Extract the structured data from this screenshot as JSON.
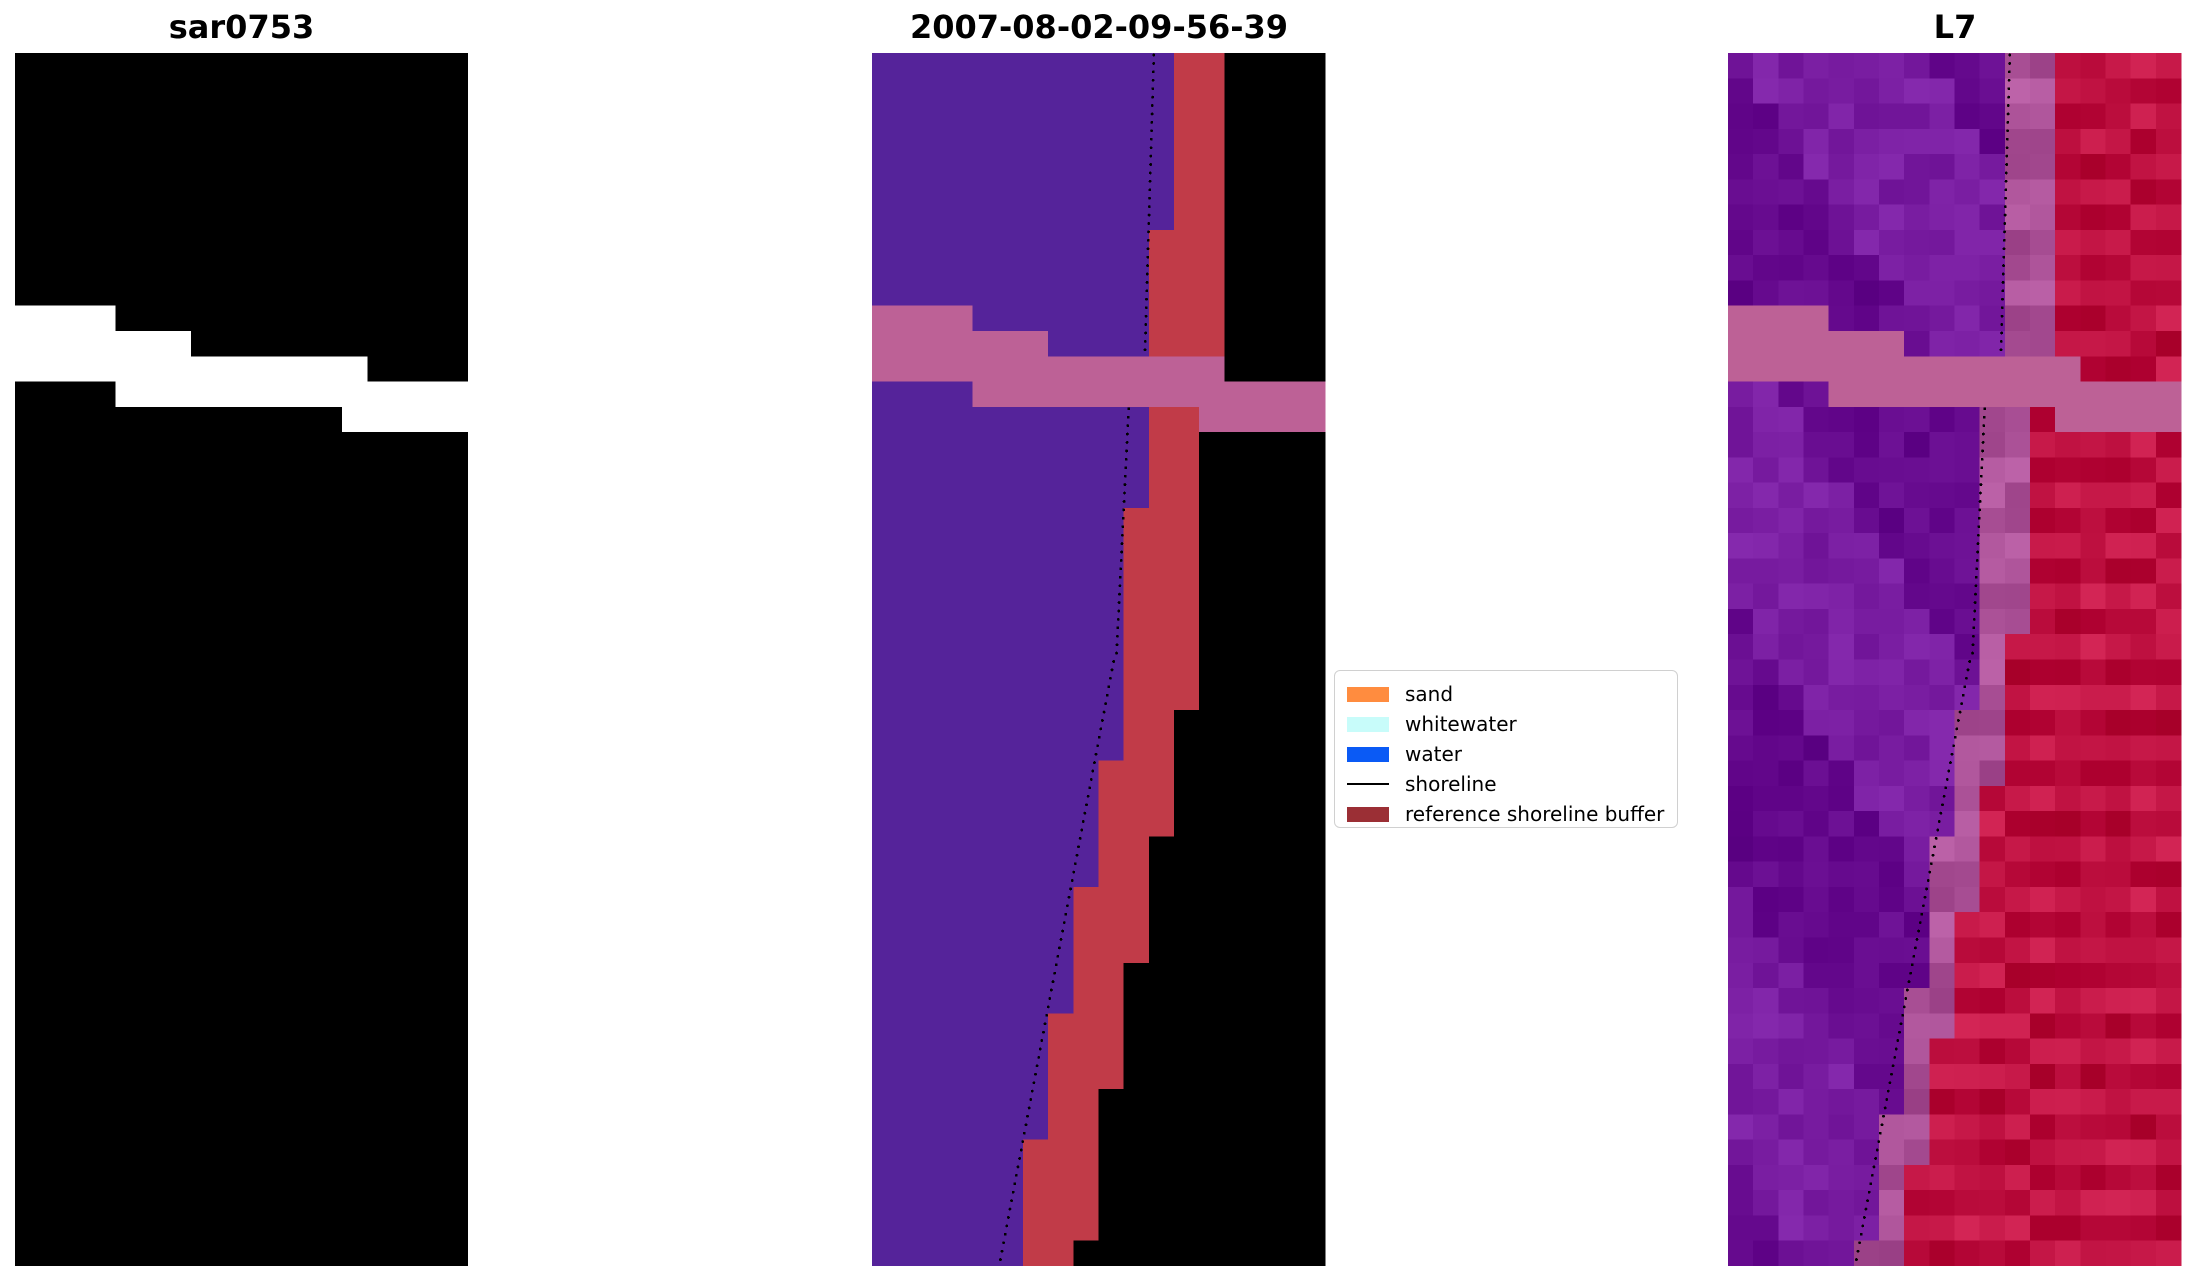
{
  "panels": [
    {
      "title": "sar0753",
      "kind": "rgb"
    },
    {
      "title": "2007-08-02-09-56-39",
      "kind": "classified"
    },
    {
      "title": "L7",
      "kind": "index"
    }
  ],
  "legend": {
    "items": [
      {
        "label": "sand",
        "type": "patch",
        "color": "#ff8c3f"
      },
      {
        "label": "whitewater",
        "type": "patch",
        "color": "#c8fcfa"
      },
      {
        "label": "water",
        "type": "patch",
        "color": "#0a5af5"
      },
      {
        "label": "shoreline",
        "type": "line",
        "color": "#000000"
      },
      {
        "label": "reference shoreline buffer",
        "type": "patch",
        "color": "#9b2f35"
      }
    ]
  },
  "colors": {
    "rgb_water": "#3a80b8",
    "rgb_white": "#e8eef8",
    "rgb_land": "#6e88b8",
    "class_water": "#55239a",
    "class_buffer": "#c13b48",
    "class_nodata": "#bd6196",
    "class_land": "#7a2d6c",
    "index_water": "#7a1ea2",
    "index_land": "#c81a4a",
    "index_nodata": "#bd6196"
  }
}
